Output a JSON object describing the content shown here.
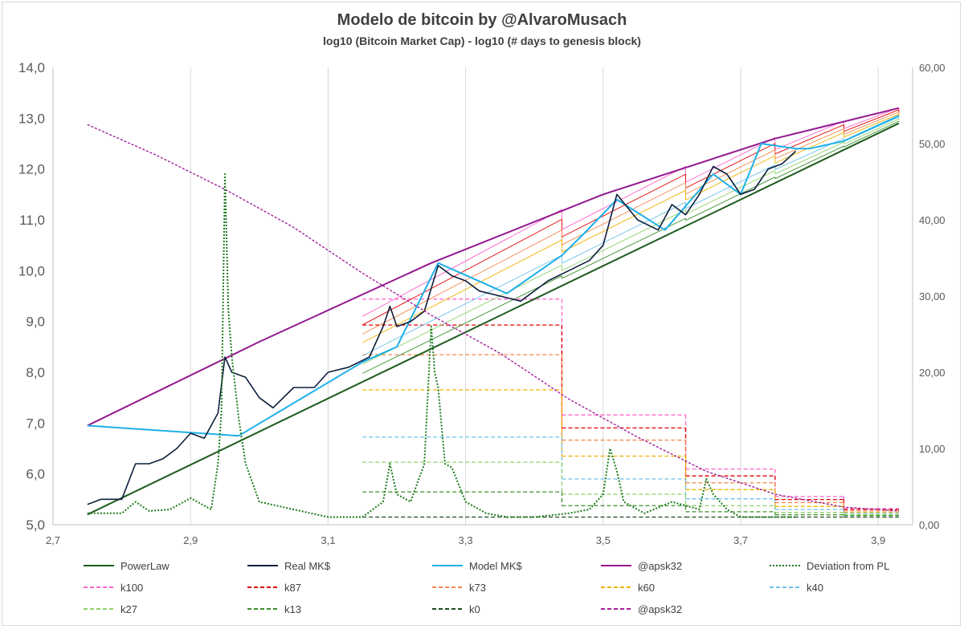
{
  "chart_data": {
    "type": "line",
    "title": "Modelo de bitcoin by @AlvaroMusach",
    "subtitle": "log10 (Bitcoin Market Cap) - log10 (# days to genesis block)",
    "xlim": [
      2.7,
      3.95
    ],
    "ylim": [
      5.0,
      14.0
    ],
    "y2lim": [
      0,
      60
    ],
    "x_ticks": [
      "2,7",
      "2,9",
      "3,1",
      "3,3",
      "3,5",
      "3,7",
      "3,9"
    ],
    "y_ticks": [
      "5,0",
      "6,0",
      "7,0",
      "8,0",
      "9,0",
      "10,0",
      "11,0",
      "12,0",
      "13,0",
      "14,0"
    ],
    "y2_ticks": [
      "0,00",
      "10,00",
      "20,00",
      "30,00",
      "40,00",
      "50,00",
      "60,00"
    ],
    "grid": "vertical",
    "legend_position": "bottom",
    "legend": [
      {
        "label": "PowerLaw",
        "color": "#1e5b1e",
        "dash": "solid"
      },
      {
        "label": "Real MK$",
        "color": "#0d1f3c",
        "dash": "solid"
      },
      {
        "label": "Model MK$",
        "color": "#1fb0e8",
        "dash": "solid"
      },
      {
        "label": "@apsk32",
        "color": "#93188f",
        "dash": "solid"
      },
      {
        "label": "Deviation from PL",
        "color": "#1e7a1e",
        "dash": "dotted"
      },
      {
        "label": "k100",
        "color": "#ff66cc",
        "dash": "dashed"
      },
      {
        "label": "k87",
        "color": "#e00000",
        "dash": "dashed"
      },
      {
        "label": "k73",
        "color": "#f4894f",
        "dash": "dashed"
      },
      {
        "label": "k60",
        "color": "#f0b000",
        "dash": "dashed"
      },
      {
        "label": "k40",
        "color": "#6fc2e8",
        "dash": "dashed"
      },
      {
        "label": "k27",
        "color": "#8fd16a",
        "dash": "dashed"
      },
      {
        "label": "k13",
        "color": "#3a8f2a",
        "dash": "dashed"
      },
      {
        "label": "k0",
        "color": "#1e4d1e",
        "dash": "dashed"
      },
      {
        "label": "@apsk32",
        "color": "#a0209a",
        "dash": "dashed"
      }
    ],
    "series": [
      {
        "id": "powerlaw",
        "axis": "left",
        "x": [
          2.75,
          3.93
        ],
        "y": [
          5.2,
          12.9
        ]
      },
      {
        "id": "apsk32_top",
        "axis": "left",
        "x": [
          2.75,
          3.0,
          3.25,
          3.5,
          3.75,
          3.93
        ],
        "y": [
          6.95,
          8.6,
          10.15,
          11.5,
          12.6,
          13.2
        ]
      },
      {
        "id": "model_mk",
        "axis": "left",
        "x": [
          2.75,
          2.97,
          3.15,
          3.2,
          3.26,
          3.36,
          3.44,
          3.47,
          3.52,
          3.59,
          3.66,
          3.7,
          3.73,
          3.78,
          3.8,
          3.85,
          3.93
        ],
        "y": [
          6.95,
          6.75,
          8.2,
          8.5,
          10.15,
          9.55,
          10.3,
          10.7,
          11.4,
          10.8,
          11.9,
          11.5,
          12.5,
          12.4,
          12.4,
          12.55,
          13.05
        ]
      },
      {
        "id": "real_mk",
        "axis": "left",
        "x": [
          2.75,
          2.77,
          2.8,
          2.82,
          2.84,
          2.86,
          2.88,
          2.9,
          2.92,
          2.94,
          2.95,
          2.96,
          2.98,
          3.0,
          3.02,
          3.05,
          3.08,
          3.1,
          3.13,
          3.16,
          3.18,
          3.19,
          3.2,
          3.22,
          3.24,
          3.26,
          3.28,
          3.3,
          3.32,
          3.35,
          3.38,
          3.42,
          3.45,
          3.48,
          3.5,
          3.52,
          3.55,
          3.58,
          3.6,
          3.62,
          3.64,
          3.66,
          3.68,
          3.7,
          3.72,
          3.74,
          3.76,
          3.78
        ],
        "y": [
          5.4,
          5.5,
          5.5,
          6.2,
          6.2,
          6.3,
          6.5,
          6.8,
          6.7,
          7.2,
          8.3,
          8.0,
          7.9,
          7.5,
          7.3,
          7.7,
          7.7,
          8.0,
          8.1,
          8.3,
          8.9,
          9.3,
          8.9,
          9.0,
          9.2,
          10.1,
          9.9,
          9.8,
          9.6,
          9.5,
          9.4,
          9.8,
          10.0,
          10.2,
          10.5,
          11.5,
          11.0,
          10.8,
          11.3,
          11.1,
          11.5,
          12.05,
          11.9,
          11.5,
          11.6,
          12.0,
          12.1,
          12.35
        ]
      },
      {
        "id": "apsk32_curve",
        "axis": "right",
        "x": [
          2.75,
          2.85,
          2.95,
          3.05,
          3.15,
          3.25,
          3.35,
          3.45,
          3.55,
          3.65,
          3.75,
          3.85,
          3.93
        ],
        "y": [
          52.5,
          48.5,
          44.0,
          39.0,
          33.0,
          27.5,
          22.5,
          16.5,
          11.5,
          7.0,
          4.0,
          2.3,
          1.8
        ]
      },
      {
        "id": "deviation",
        "axis": "right",
        "x": [
          2.75,
          2.8,
          2.82,
          2.84,
          2.87,
          2.9,
          2.92,
          2.93,
          2.94,
          2.945,
          2.95,
          2.955,
          2.96,
          2.97,
          2.98,
          3.0,
          3.05,
          3.1,
          3.15,
          3.18,
          3.19,
          3.2,
          3.22,
          3.24,
          3.25,
          3.255,
          3.26,
          3.27,
          3.28,
          3.3,
          3.33,
          3.36,
          3.4,
          3.45,
          3.48,
          3.5,
          3.51,
          3.52,
          3.53,
          3.56,
          3.6,
          3.64,
          3.65,
          3.66,
          3.68,
          3.7,
          3.74,
          3.78
        ],
        "y": [
          1.5,
          1.5,
          3.0,
          1.8,
          2.0,
          3.5,
          2.5,
          2.0,
          8.0,
          15.0,
          46.0,
          28.0,
          22.0,
          14.0,
          8.0,
          3.0,
          2.0,
          1.0,
          1.0,
          3.0,
          8.0,
          4.0,
          3.0,
          8.0,
          26.0,
          20.0,
          18.0,
          8.0,
          7.5,
          3.0,
          1.5,
          1.0,
          1.0,
          1.5,
          2.0,
          4.0,
          10.0,
          7.0,
          3.0,
          1.5,
          3.0,
          2.0,
          6.0,
          4.0,
          2.0,
          1.0,
          1.0,
          1.0
        ]
      }
    ],
    "k_levels": {
      "names": [
        "k100",
        "k87",
        "k73",
        "k60",
        "k40",
        "k27",
        "k13",
        "k0"
      ],
      "segments": [
        {
          "x": [
            3.15,
            3.44
          ],
          "y2": [
            29.6,
            26.2,
            22.3,
            17.7,
            11.5,
            8.2,
            4.3,
            1.0
          ]
        },
        {
          "x": [
            3.44,
            3.62
          ],
          "y2": [
            14.4,
            12.7,
            11.1,
            9.0,
            6.0,
            4.0,
            2.5,
            1.0
          ]
        },
        {
          "x": [
            3.62,
            3.75
          ],
          "y2": [
            7.3,
            6.4,
            5.5,
            4.6,
            3.4,
            2.5,
            1.7,
            1.0
          ]
        },
        {
          "x": [
            3.75,
            3.85
          ],
          "y2": [
            3.7,
            3.3,
            2.9,
            2.4,
            2.0,
            1.6,
            1.3,
            1.0
          ]
        },
        {
          "x": [
            3.85,
            3.93
          ],
          "y2": [
            2.1,
            2.0,
            1.8,
            1.6,
            1.5,
            1.3,
            1.2,
            1.0
          ]
        }
      ]
    }
  }
}
